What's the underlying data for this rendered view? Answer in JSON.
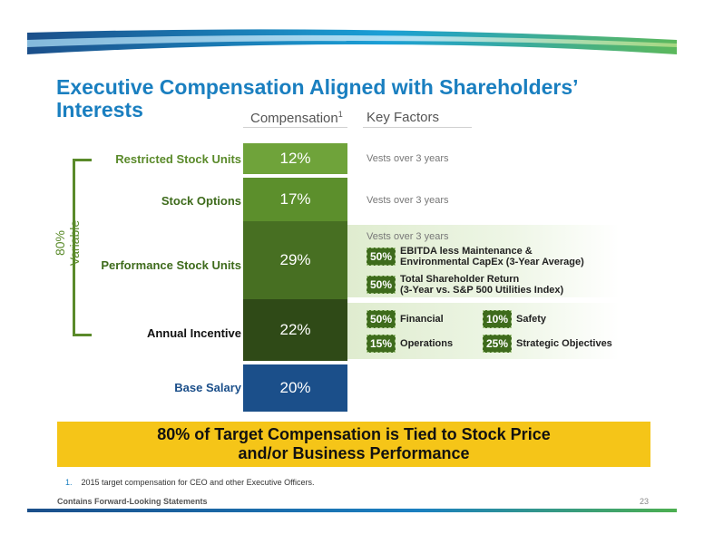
{
  "title": "Executive Compensation Aligned with Shareholders’ Interests",
  "title_line1": "Executive Compensation Aligned with Shareholders’",
  "title_line2": "Interests",
  "columns": {
    "compensation": "Compensation",
    "compensation_sup": "1",
    "key_factors": "Key Factors"
  },
  "variable_label": "80% Variable",
  "components": [
    {
      "label": "Restricted Stock Units",
      "value": "12%",
      "color": "#6fa33a",
      "label_color": "#5a8a2a"
    },
    {
      "label": "Stock Options",
      "value": "17%",
      "color": "#5c8f2c",
      "label_color": "#3e6b1c"
    },
    {
      "label": "Performance Stock Units",
      "value": "29%",
      "color": "#476f22",
      "label_color": "#3e6b1c"
    },
    {
      "label": "Annual Incentive",
      "value": "22%",
      "color": "#2f4a17",
      "label_color": "#111111"
    },
    {
      "label": "Base Salary",
      "value": "20%",
      "color": "#1b4f8a",
      "label_color": "#1b4f8a"
    }
  ],
  "key_factors": {
    "rsu": "Vests over 3 years",
    "options": "Vests over 3 years",
    "psu": {
      "vesting": "Vests over 3 years",
      "items": [
        {
          "pct": "50%",
          "line1": "EBITDA less Maintenance &",
          "line2": "Environmental CapEx (3-Year Average)"
        },
        {
          "pct": "50%",
          "line1": "Total Shareholder Return",
          "line2": "(3-Year vs. S&P 500 Utilities Index)"
        }
      ]
    },
    "annual": [
      {
        "pct": "50%",
        "label": "Financial"
      },
      {
        "pct": "10%",
        "label": "Safety"
      },
      {
        "pct": "15%",
        "label": "Operations"
      },
      {
        "pct": "25%",
        "label": "Strategic Objectives"
      }
    ]
  },
  "callout": {
    "line1": "80% of Target Compensation is Tied to Stock Price",
    "line2": "and/or Business Performance"
  },
  "footnote": {
    "num": "1.",
    "text": "2015 target compensation for CEO and other Executive Officers."
  },
  "footer": {
    "left": "Contains Forward-Looking Statements",
    "page": "23"
  }
}
